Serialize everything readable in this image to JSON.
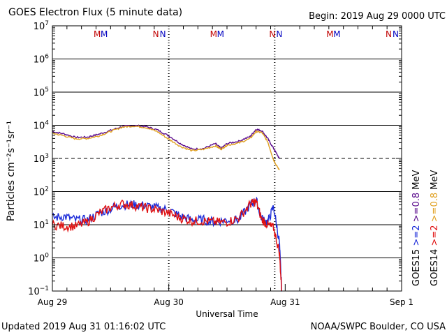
{
  "header": {
    "title": "GOES Electron Flux (5 minute data)",
    "begin": "Begin: 2019 Aug 29 0000 UTC"
  },
  "footer": {
    "updated": "Updated 2019 Aug 31 01:16:02 UTC",
    "source": "NOAA/SWPC Boulder, CO USA"
  },
  "colors": {
    "goes15_08": "#5a0a8c",
    "goes14_08": "#e0a020",
    "goes15_2": "#1a2ad8",
    "goes14_2": "#e01010",
    "marker_m": "#c00000",
    "marker_n": "#0000c0"
  },
  "chart_data": {
    "type": "line",
    "title": "GOES Electron Flux (5 minute data)",
    "xlabel": "Universal Time",
    "ylabel": "Particles cm⁻²s⁻¹sr⁻¹",
    "yscale": "log",
    "ylim": [
      0.1,
      10000000
    ],
    "x_unit": "days since 2019 Aug 29 0000 UTC",
    "xlim": [
      0,
      3
    ],
    "x_ticks": [
      {
        "value": 0,
        "label": "Aug 29"
      },
      {
        "value": 1,
        "label": "Aug 30"
      },
      {
        "value": 2,
        "label": "Aug 31"
      },
      {
        "value": 3,
        "label": "Sep 1"
      }
    ],
    "y_ticks": [
      {
        "exp": -1,
        "mantissa": "10",
        "power": "−1"
      },
      {
        "exp": 0,
        "mantissa": "10",
        "power": "0"
      },
      {
        "exp": 1,
        "mantissa": "10",
        "power": "1"
      },
      {
        "exp": 2,
        "mantissa": "10",
        "power": "2"
      },
      {
        "exp": 3,
        "mantissa": "10",
        "power": "3"
      },
      {
        "exp": 4,
        "mantissa": "10",
        "power": "4"
      },
      {
        "exp": 5,
        "mantissa": "10",
        "power": "5"
      },
      {
        "exp": 6,
        "mantissa": "10",
        "power": "6"
      },
      {
        "exp": 7,
        "mantissa": "10",
        "power": "7"
      }
    ],
    "threshold": 1000,
    "dotted_verticals": [
      1.0,
      1.91
    ],
    "markers": [
      {
        "label": "M",
        "x": 0.44,
        "color": "#c00000"
      },
      {
        "label": "M",
        "x": 0.5,
        "color": "#0000c0"
      },
      {
        "label": "N",
        "x": 0.94,
        "color": "#c00000"
      },
      {
        "label": "N",
        "x": 1.0,
        "color": "#0000c0"
      },
      {
        "label": "M",
        "x": 1.44,
        "color": "#c00000"
      },
      {
        "label": "M",
        "x": 1.5,
        "color": "#0000c0"
      },
      {
        "label": "N",
        "x": 1.94,
        "color": "#c00000"
      },
      {
        "label": "N",
        "x": 2.0,
        "color": "#0000c0"
      },
      {
        "label": "M",
        "x": 2.44,
        "color": "#c00000"
      },
      {
        "label": "M",
        "x": 2.5,
        "color": "#0000c0"
      },
      {
        "label": "N",
        "x": 2.94,
        "color": "#c00000"
      },
      {
        "label": "N",
        "x": 3.0,
        "color": "#0000c0"
      }
    ],
    "legend": [
      {
        "label": "GOES15",
        "color": "#000000"
      },
      {
        "label": ">=2",
        "color": "#1a2ad8"
      },
      {
        "label": ">=0.8",
        "color": "#5a0a8c"
      },
      {
        "label": "MeV",
        "color": "#000000"
      },
      {
        "label": "GOES14",
        "color": "#000000"
      },
      {
        "label": ">=2",
        "color": "#e01010"
      },
      {
        "label": ">=0.8",
        "color": "#e0a020"
      },
      {
        "label": "MeV",
        "color": "#000000"
      }
    ],
    "series": [
      {
        "name": "GOES15 >=0.8 MeV",
        "color": "#5a0a8c",
        "x": [
          0,
          0.1,
          0.2,
          0.3,
          0.4,
          0.5,
          0.6,
          0.7,
          0.8,
          0.9,
          1.0,
          1.1,
          1.2,
          1.3,
          1.4,
          1.45,
          1.5,
          1.6,
          1.7,
          1.75,
          1.8,
          1.85,
          1.9,
          1.95
        ],
        "y": [
          6500,
          5500,
          4300,
          4400,
          5400,
          7000,
          9200,
          9800,
          9200,
          7300,
          4800,
          2800,
          1900,
          2000,
          2800,
          2000,
          2800,
          3300,
          4600,
          7600,
          6800,
          4000,
          2000,
          1000
        ]
      },
      {
        "name": "GOES14 >=0.8 MeV",
        "color": "#e0a020",
        "x": [
          0,
          0.1,
          0.2,
          0.3,
          0.4,
          0.5,
          0.6,
          0.7,
          0.8,
          0.9,
          1.0,
          1.1,
          1.2,
          1.3,
          1.4,
          1.45,
          1.5,
          1.6,
          1.7,
          1.75,
          1.8,
          1.85,
          1.9,
          1.95
        ],
        "y": [
          5800,
          4800,
          3900,
          4000,
          4800,
          6500,
          8800,
          9500,
          8600,
          6500,
          3800,
          2300,
          1700,
          1900,
          2400,
          1900,
          2500,
          2900,
          4000,
          6500,
          6000,
          3200,
          900,
          450
        ]
      },
      {
        "name": "GOES15 >=2 MeV",
        "color": "#1a2ad8",
        "x": [
          0,
          0.1,
          0.2,
          0.3,
          0.4,
          0.5,
          0.6,
          0.7,
          0.8,
          0.9,
          1.0,
          1.1,
          1.2,
          1.3,
          1.4,
          1.5,
          1.6,
          1.7,
          1.75,
          1.8,
          1.85,
          1.9,
          1.95,
          1.97
        ],
        "y": [
          16,
          18,
          14,
          14,
          22,
          30,
          40,
          40,
          38,
          32,
          28,
          18,
          14,
          14,
          12,
          14,
          14,
          40,
          55,
          15,
          12,
          35,
          3,
          0.1
        ]
      },
      {
        "name": "GOES14 >=2 MeV",
        "color": "#e01010",
        "x": [
          0,
          0.1,
          0.2,
          0.3,
          0.4,
          0.5,
          0.6,
          0.7,
          0.8,
          0.9,
          1.0,
          1.1,
          1.2,
          1.3,
          1.4,
          1.5,
          1.6,
          1.7,
          1.75,
          1.8,
          1.85,
          1.9,
          1.95,
          1.97
        ],
        "y": [
          10,
          9,
          9,
          12,
          22,
          33,
          42,
          38,
          32,
          28,
          22,
          16,
          13,
          13,
          12,
          12,
          16,
          42,
          50,
          14,
          10,
          8,
          1.5,
          0.1
        ]
      }
    ]
  }
}
